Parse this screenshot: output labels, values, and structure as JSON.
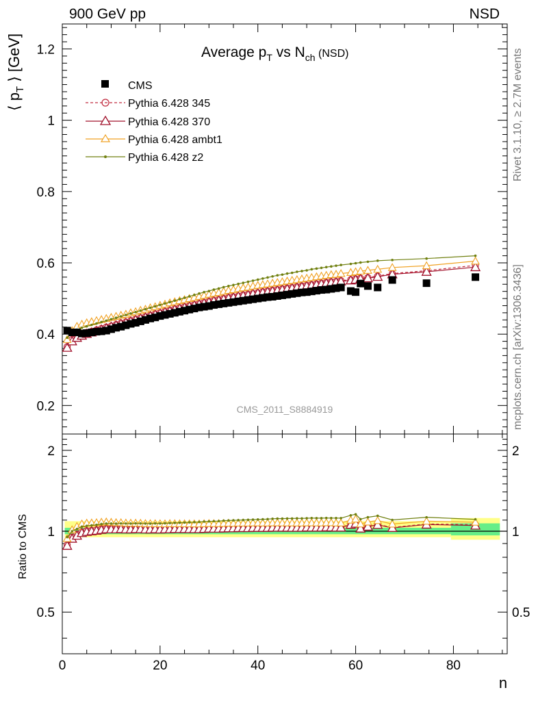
{
  "header": {
    "left": "900 GeV pp",
    "right": "NSD"
  },
  "side_labels": {
    "rivet": "Rivet 3.1.10, ≥ 2.7M events",
    "mcplots": "mcplots.cern.ch [arXiv:1306.3436]"
  },
  "watermark": "CMS_2011_S8884919",
  "chart_data": {
    "type": "scatter",
    "title_main": "Average p",
    "title_sub1": "T",
    "title_mid": " vs N",
    "title_sub2": "ch",
    "title_tail": " (NSD)",
    "ylabel_main": "⟨ p",
    "ylabel_sub": "T",
    "ylabel_tail": " ⟩ [GeV]",
    "xlabel": "n",
    "ratio_ylabel": "Ratio to CMS",
    "xlim": [
      0,
      91
    ],
    "ylim": [
      0.12,
      1.27
    ],
    "ratio_ylim": [
      0.35,
      2.3
    ],
    "x_ticks": [
      "0",
      "20",
      "40",
      "60",
      "80"
    ],
    "y_ticks": [
      "0.2",
      "0.4",
      "0.6",
      "0.8",
      "1",
      "1.2"
    ],
    "ratio_ticks_left": [
      "0.5",
      "1",
      "2"
    ],
    "ratio_ticks_right": [
      "0.5",
      "1",
      "2"
    ],
    "colors": {
      "cms": "#000000",
      "p345": "#c0283c",
      "p370": "#a0102a",
      "ambt1": "#f0a020",
      "z2": "#708010",
      "band_inner": "#66ee88",
      "band_outer": "#ffff88"
    },
    "cms": {
      "name": "CMS",
      "x": [
        1,
        2,
        3,
        4,
        5,
        6,
        7,
        8,
        9,
        10,
        11,
        12,
        13,
        14,
        15,
        16,
        17,
        18,
        19,
        20,
        21,
        22,
        23,
        24,
        25,
        26,
        27,
        28,
        29,
        30,
        31,
        32,
        33,
        34,
        35,
        36,
        37,
        38,
        39,
        40,
        41,
        42,
        43,
        44,
        45,
        46,
        47,
        48,
        49,
        50,
        51,
        52,
        53,
        54,
        55,
        56,
        57,
        59,
        60,
        61,
        62.5,
        64.5,
        67.5,
        74.5,
        84.5
      ],
      "y": [
        0.41,
        0.405,
        0.405,
        0.402,
        0.403,
        0.405,
        0.407,
        0.408,
        0.41,
        0.414,
        0.418,
        0.421,
        0.425,
        0.429,
        0.432,
        0.436,
        0.44,
        0.444,
        0.447,
        0.451,
        0.454,
        0.457,
        0.46,
        0.463,
        0.466,
        0.469,
        0.472,
        0.475,
        0.477,
        0.479,
        0.482,
        0.484,
        0.486,
        0.488,
        0.49,
        0.492,
        0.494,
        0.496,
        0.498,
        0.5,
        0.502,
        0.504,
        0.505,
        0.507,
        0.509,
        0.511,
        0.513,
        0.515,
        0.517,
        0.518,
        0.52,
        0.522,
        0.524,
        0.525,
        0.527,
        0.529,
        0.531,
        0.521,
        0.518,
        0.542,
        0.535,
        0.531,
        0.552,
        0.543,
        0.56
      ]
    },
    "series": [
      {
        "name": "Pythia 6.428 345",
        "style": "dashed-circle",
        "x": [
          1,
          2,
          3,
          4,
          5,
          6,
          7,
          8,
          9,
          10,
          11,
          12,
          13,
          14,
          15,
          16,
          17,
          18,
          19,
          20,
          21,
          22,
          23,
          24,
          25,
          26,
          27,
          28,
          29,
          30,
          31,
          32,
          33,
          34,
          35,
          36,
          37,
          38,
          39,
          40,
          41,
          42,
          43,
          44,
          45,
          46,
          47,
          48,
          49,
          50,
          51,
          52,
          53,
          54,
          55,
          56,
          57,
          59,
          60,
          61,
          62.5,
          64.5,
          67.5,
          74.5,
          84.5
        ],
        "y": [
          0.365,
          0.385,
          0.395,
          0.4,
          0.405,
          0.408,
          0.412,
          0.416,
          0.42,
          0.423,
          0.427,
          0.431,
          0.434,
          0.438,
          0.442,
          0.446,
          0.449,
          0.453,
          0.457,
          0.46,
          0.464,
          0.467,
          0.471,
          0.474,
          0.477,
          0.48,
          0.483,
          0.486,
          0.489,
          0.492,
          0.495,
          0.497,
          0.5,
          0.503,
          0.505,
          0.507,
          0.51,
          0.512,
          0.514,
          0.516,
          0.519,
          0.521,
          0.523,
          0.525,
          0.527,
          0.529,
          0.531,
          0.533,
          0.535,
          0.537,
          0.539,
          0.541,
          0.543,
          0.545,
          0.547,
          0.548,
          0.55,
          0.553,
          0.555,
          0.557,
          0.559,
          0.563,
          0.57,
          0.578,
          0.593
        ]
      },
      {
        "name": "Pythia 6.428 370",
        "style": "solid-triangle",
        "x": [
          1,
          2,
          3,
          4,
          5,
          6,
          7,
          8,
          9,
          10,
          11,
          12,
          13,
          14,
          15,
          16,
          17,
          18,
          19,
          20,
          21,
          22,
          23,
          24,
          25,
          26,
          27,
          28,
          29,
          30,
          31,
          32,
          33,
          34,
          35,
          36,
          37,
          38,
          39,
          40,
          41,
          42,
          43,
          44,
          45,
          46,
          47,
          48,
          49,
          50,
          51,
          52,
          53,
          54,
          55,
          56,
          57,
          59,
          60,
          61,
          62.5,
          64.5,
          67.5,
          74.5,
          84.5
        ],
        "y": [
          0.362,
          0.38,
          0.39,
          0.396,
          0.401,
          0.405,
          0.409,
          0.413,
          0.417,
          0.421,
          0.425,
          0.429,
          0.432,
          0.436,
          0.44,
          0.444,
          0.447,
          0.451,
          0.455,
          0.458,
          0.462,
          0.465,
          0.469,
          0.472,
          0.475,
          0.478,
          0.481,
          0.484,
          0.487,
          0.49,
          0.493,
          0.495,
          0.498,
          0.501,
          0.503,
          0.506,
          0.508,
          0.51,
          0.513,
          0.515,
          0.517,
          0.519,
          0.521,
          0.523,
          0.525,
          0.527,
          0.529,
          0.531,
          0.533,
          0.535,
          0.537,
          0.539,
          0.541,
          0.543,
          0.545,
          0.546,
          0.548,
          0.551,
          0.553,
          0.555,
          0.557,
          0.561,
          0.568,
          0.575,
          0.588
        ]
      },
      {
        "name": "Pythia 6.428 ambt1",
        "style": "solid-triangle",
        "x": [
          1,
          2,
          3,
          4,
          5,
          6,
          7,
          8,
          9,
          10,
          11,
          12,
          13,
          14,
          15,
          16,
          17,
          18,
          19,
          20,
          21,
          22,
          23,
          24,
          25,
          26,
          27,
          28,
          29,
          30,
          31,
          32,
          33,
          34,
          35,
          36,
          37,
          38,
          39,
          40,
          41,
          42,
          43,
          44,
          45,
          46,
          47,
          48,
          49,
          50,
          51,
          52,
          53,
          54,
          55,
          56,
          57,
          59,
          60,
          61,
          62.5,
          64.5,
          67.5,
          74.5,
          84.5
        ],
        "y": [
          0.385,
          0.41,
          0.422,
          0.428,
          0.432,
          0.435,
          0.438,
          0.441,
          0.444,
          0.447,
          0.45,
          0.453,
          0.456,
          0.46,
          0.463,
          0.467,
          0.47,
          0.474,
          0.477,
          0.481,
          0.484,
          0.488,
          0.491,
          0.494,
          0.497,
          0.5,
          0.503,
          0.506,
          0.509,
          0.512,
          0.515,
          0.517,
          0.52,
          0.523,
          0.525,
          0.528,
          0.53,
          0.532,
          0.535,
          0.537,
          0.539,
          0.541,
          0.543,
          0.545,
          0.547,
          0.549,
          0.551,
          0.553,
          0.555,
          0.557,
          0.559,
          0.561,
          0.563,
          0.565,
          0.567,
          0.568,
          0.57,
          0.573,
          0.575,
          0.577,
          0.579,
          0.582,
          0.587,
          0.592,
          0.605
        ]
      },
      {
        "name": "Pythia 6.428 z2",
        "style": "solid-dot",
        "x": [
          1,
          2,
          3,
          4,
          5,
          6,
          7,
          8,
          9,
          10,
          11,
          12,
          13,
          14,
          15,
          16,
          17,
          18,
          19,
          20,
          21,
          22,
          23,
          24,
          25,
          26,
          27,
          28,
          29,
          30,
          31,
          32,
          33,
          34,
          35,
          36,
          37,
          38,
          39,
          40,
          41,
          42,
          43,
          44,
          45,
          46,
          47,
          48,
          49,
          50,
          51,
          52,
          53,
          54,
          55,
          56,
          57,
          59,
          60,
          61,
          62.5,
          64.5,
          67.5,
          74.5,
          84.5
        ],
        "y": [
          0.39,
          0.405,
          0.413,
          0.418,
          0.422,
          0.426,
          0.43,
          0.434,
          0.438,
          0.442,
          0.446,
          0.45,
          0.454,
          0.458,
          0.462,
          0.466,
          0.47,
          0.474,
          0.478,
          0.482,
          0.486,
          0.49,
          0.494,
          0.498,
          0.502,
          0.506,
          0.51,
          0.514,
          0.518,
          0.521,
          0.525,
          0.528,
          0.532,
          0.535,
          0.538,
          0.541,
          0.544,
          0.547,
          0.55,
          0.553,
          0.556,
          0.559,
          0.562,
          0.565,
          0.567,
          0.57,
          0.572,
          0.575,
          0.577,
          0.579,
          0.582,
          0.584,
          0.586,
          0.588,
          0.59,
          0.592,
          0.594,
          0.597,
          0.599,
          0.601,
          0.603,
          0.606,
          0.608,
          0.612,
          0.62
        ]
      }
    ]
  }
}
